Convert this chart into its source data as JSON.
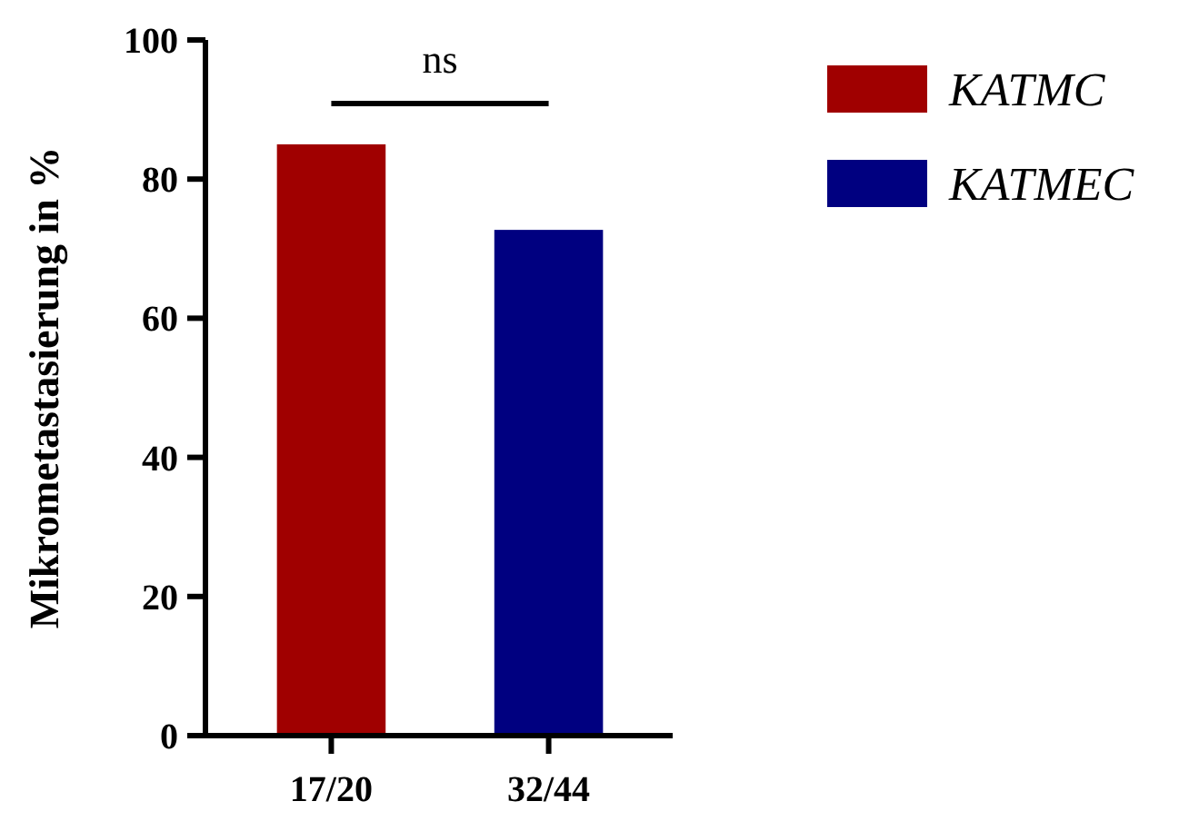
{
  "chart_data": {
    "type": "bar",
    "ylabel": "Mikrometastasierung in %",
    "categories": [
      "17/20",
      "32/44"
    ],
    "series": [
      {
        "name": "KATMC",
        "color": "#a00000",
        "values": [
          85,
          null
        ]
      },
      {
        "name": "KATMEC",
        "color": "#000080",
        "values": [
          null,
          72.7
        ]
      }
    ],
    "ylim": [
      0,
      100
    ],
    "yticks": [
      0,
      20,
      40,
      60,
      80,
      100
    ],
    "legend": "right",
    "grid": false,
    "annotations": [
      "ns"
    ]
  }
}
